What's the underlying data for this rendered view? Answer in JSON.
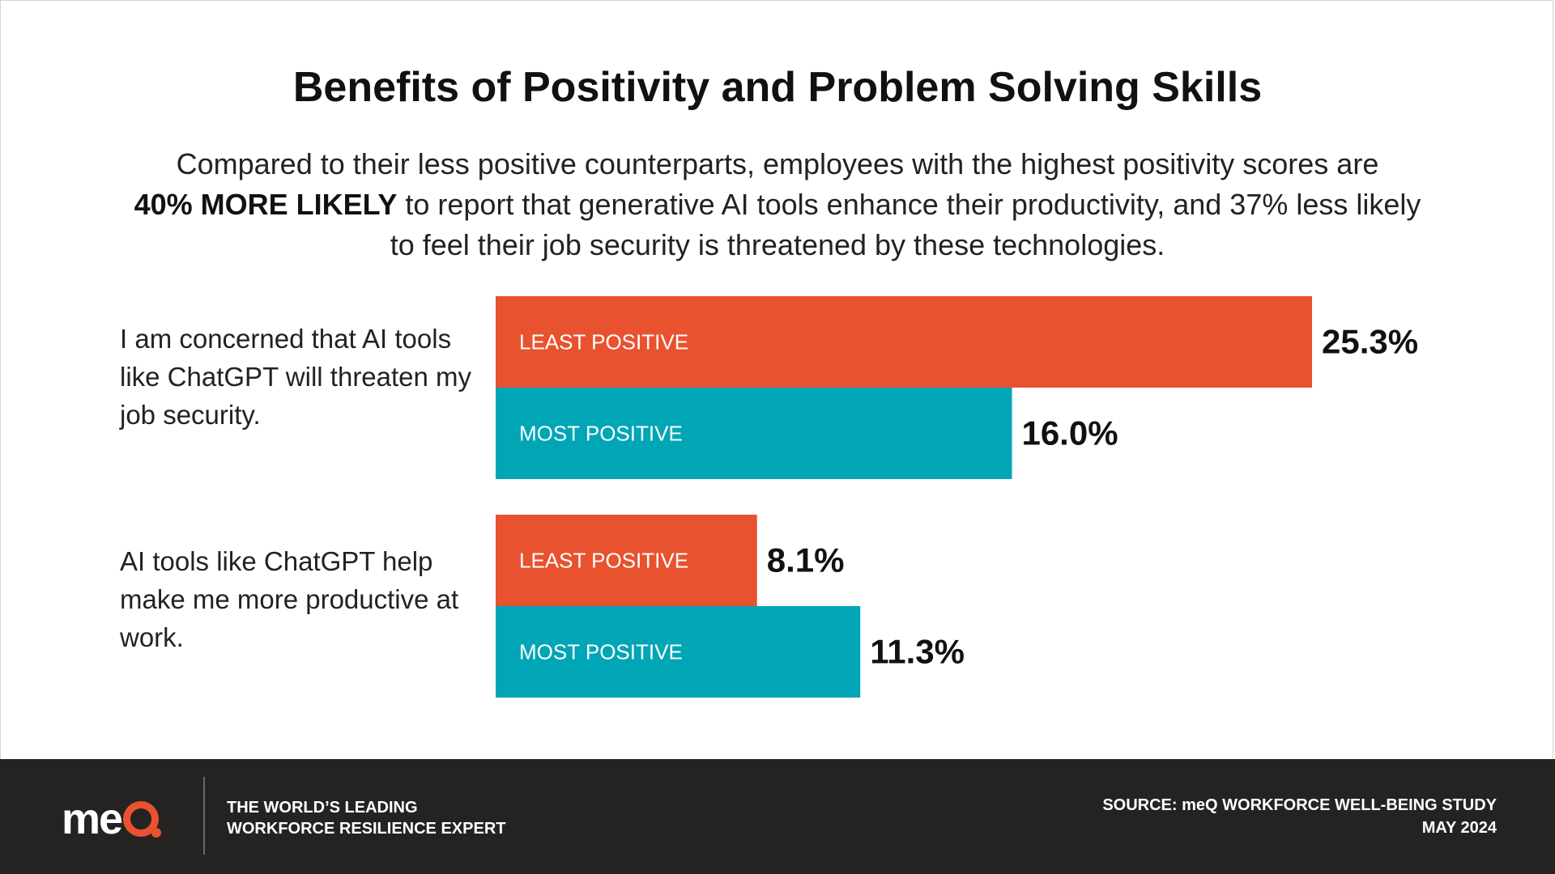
{
  "title": "Benefits of Positivity and Problem Solving Skills",
  "subtitle": {
    "line1": "Compared to their less positive counterparts, employees with the highest positivity scores are",
    "bold": "40% MORE LIKELY",
    "line2_rest": " to report that generative AI tools enhance their productivity, and 37% less likely",
    "line3": "to feel their job security is threatened by these technologies."
  },
  "colors": {
    "least_positive": "#e8522f",
    "most_positive": "#00a6b6",
    "footer_bg": "#252222"
  },
  "chart_data": {
    "type": "bar",
    "orientation": "horizontal",
    "categories": [
      "I am concerned that AI tools like ChatGPT will threaten my job security.",
      "AI tools like ChatGPT help make me more productive at work."
    ],
    "series": [
      {
        "name": "LEAST POSITIVE",
        "values": [
          25.3,
          8.1
        ],
        "labels": [
          "25.3%",
          "8.1%"
        ]
      },
      {
        "name": "MOST POSITIVE",
        "values": [
          16.0,
          11.3
        ],
        "labels": [
          "16.0%",
          "11.3%"
        ]
      }
    ],
    "unit": "%",
    "xlim": [
      0,
      25.3
    ],
    "grid": false,
    "legend": "none"
  },
  "question1": "I am concerned that AI tools like ChatGPT will threaten my job security.",
  "question2": "AI tools like ChatGPT help make me more productive at work.",
  "footer": {
    "logo_text": "me",
    "tagline_line1": "THE WORLD’S LEADING",
    "tagline_line2": "WORKFORCE RESILIENCE EXPERT",
    "source_line1": "SOURCE: meQ WORKFORCE WELL-BEING STUDY",
    "source_line2": "MAY 2024"
  }
}
